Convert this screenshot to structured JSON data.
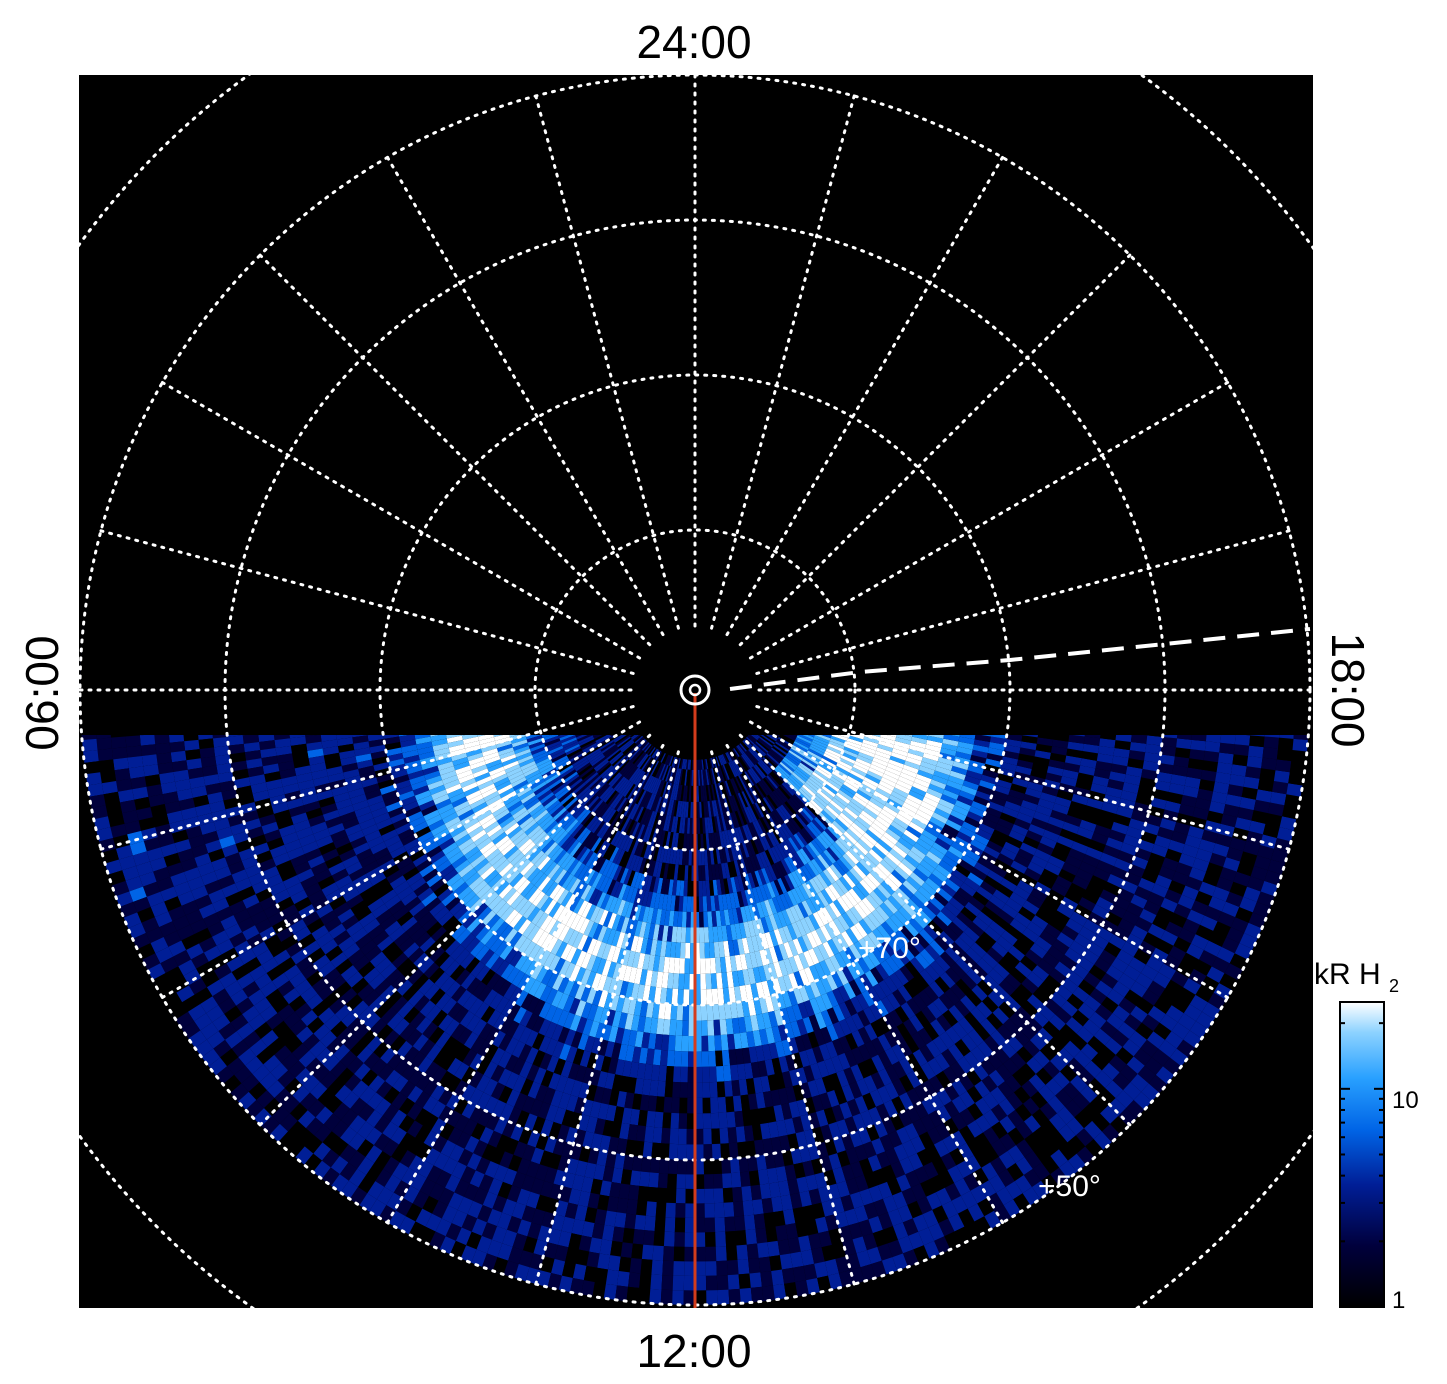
{
  "chart_data": {
    "type": "heatmap",
    "projection": "polar",
    "local_time_labels": {
      "top": "24:00",
      "bottom": "12:00",
      "left": "06:00",
      "right": "18:00"
    },
    "latitude_grid_deg": [
      90,
      80,
      70,
      60,
      50,
      40
    ],
    "latitude_labels": [
      "+70°",
      "+50°"
    ],
    "local_time_grid_spacing_hours": 1,
    "colorbar": {
      "title": "kR H",
      "title_subscript": "2",
      "scale": "log",
      "range": [
        1,
        25
      ],
      "tick_labels": [
        "1",
        "10"
      ],
      "tick_values": [
        1,
        10
      ],
      "colors": [
        "#000000",
        "#00003c",
        "#001e96",
        "#0064e6",
        "#28a0ff",
        "#8cd2ff",
        "#ffffff"
      ]
    },
    "features": {
      "noon_meridian_line_color": "#d43c1c",
      "observation_edge": "data coverage only on dayside half of map (local times 06:00 to 18:00 through 12:00)",
      "dashed_line": "white dashed line toward 18:00 side"
    },
    "grid": true
  }
}
